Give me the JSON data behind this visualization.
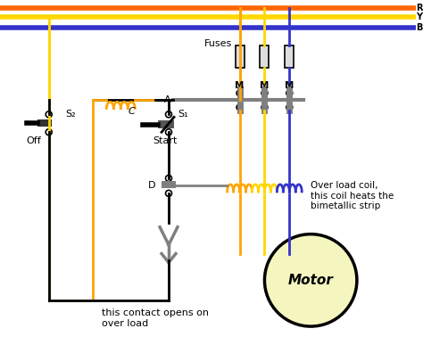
{
  "bg_color": "#ffffff",
  "wire_R_color": "#FF6600",
  "wire_Y_color": "#FFD700",
  "wire_B_color": "#3333CC",
  "wire_orange_color": "#FFA500",
  "wire_black_color": "#000000",
  "wire_gray_color": "#888888",
  "motor_fill": "#F5F5C0",
  "motor_edge": "#000000",
  "fuse_fill": "#DDDDDD",
  "labels": {
    "R": "R",
    "Y": "Y",
    "B": "B",
    "Fuses": "Fuses",
    "C": "C",
    "A": "A",
    "D": "D",
    "S1": "S₁",
    "S2": "S₂",
    "Off": "Off",
    "Start": "Start",
    "Motor": "Motor",
    "M": "M",
    "overload_coil": "Over load coil,\nthis coil heats the\nbimetallic strip",
    "contact_opens": "this contact opens on\nover load"
  }
}
